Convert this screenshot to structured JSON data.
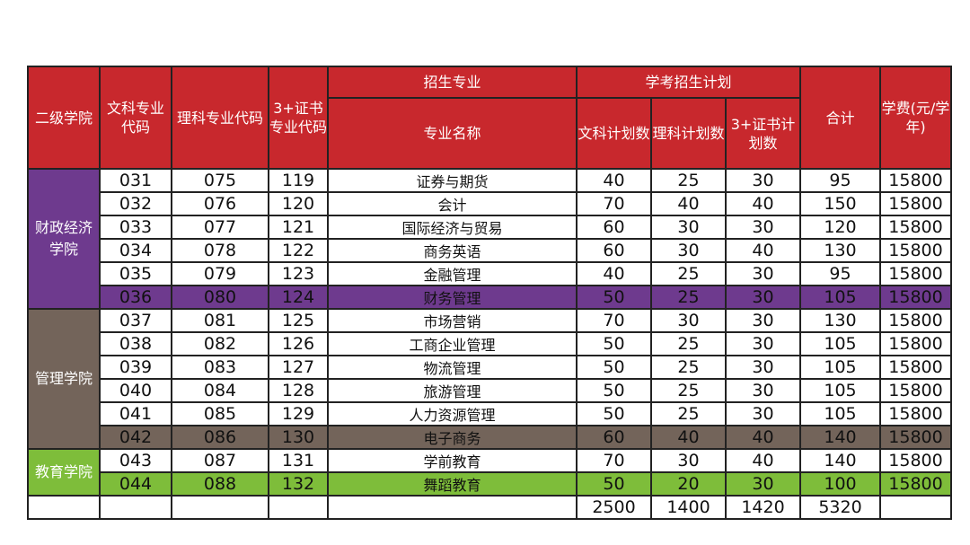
{
  "header": {
    "college": "二级学院",
    "arts_code": "文科专业代码",
    "science_code": "理科专业代码",
    "cert_code": "3+证书专业代码",
    "major_group": "招生专业",
    "major_name": "专业名称",
    "plan_group": "学考招生计划",
    "arts_plan": "文科计划数",
    "science_plan": "理科计划数",
    "cert_plan": "3+证书计划数",
    "total": "合计",
    "fee": "学费(元/学年)"
  },
  "colors": {
    "header_red": "#c8282d",
    "purple": "#6e3a8e",
    "brown": "#73645a",
    "green": "#7ebd3a"
  },
  "colleges": [
    {
      "name": "财政经济学院",
      "rows": [
        [
          "031",
          "075",
          "119",
          "证券与期货",
          "40",
          "25",
          "30",
          "95",
          "15800"
        ],
        [
          "032",
          "076",
          "120",
          "会计",
          "70",
          "40",
          "40",
          "150",
          "15800"
        ],
        [
          "033",
          "077",
          "121",
          "国际经济与贸易",
          "60",
          "30",
          "30",
          "120",
          "15800"
        ],
        [
          "034",
          "078",
          "122",
          "商务英语",
          "60",
          "30",
          "40",
          "130",
          "15800"
        ],
        [
          "035",
          "079",
          "123",
          "金融管理",
          "40",
          "25",
          "30",
          "95",
          "15800"
        ],
        [
          "036",
          "080",
          "124",
          "财务管理",
          "50",
          "25",
          "30",
          "105",
          "15800"
        ]
      ]
    },
    {
      "name": "管理学院",
      "rows": [
        [
          "037",
          "081",
          "125",
          "市场营销",
          "70",
          "30",
          "30",
          "130",
          "15800"
        ],
        [
          "038",
          "082",
          "126",
          "工商企业管理",
          "50",
          "25",
          "30",
          "105",
          "15800"
        ],
        [
          "039",
          "083",
          "127",
          "物流管理",
          "50",
          "25",
          "30",
          "105",
          "15800"
        ],
        [
          "040",
          "084",
          "128",
          "旅游管理",
          "50",
          "25",
          "30",
          "105",
          "15800"
        ],
        [
          "041",
          "085",
          "129",
          "人力资源管理",
          "50",
          "25",
          "30",
          "105",
          "15800"
        ],
        [
          "042",
          "086",
          "130",
          "电子商务",
          "60",
          "40",
          "40",
          "140",
          "15800"
        ]
      ]
    },
    {
      "name": "教育学院",
      "rows": [
        [
          "043",
          "087",
          "131",
          "学前教育",
          "70",
          "30",
          "40",
          "140",
          "15800"
        ],
        [
          "044",
          "088",
          "132",
          "舞蹈教育",
          "50",
          "20",
          "30",
          "100",
          "15800"
        ]
      ]
    }
  ],
  "totals": {
    "arts": "2500",
    "science": "1400",
    "cert": "1420",
    "all": "5320"
  }
}
